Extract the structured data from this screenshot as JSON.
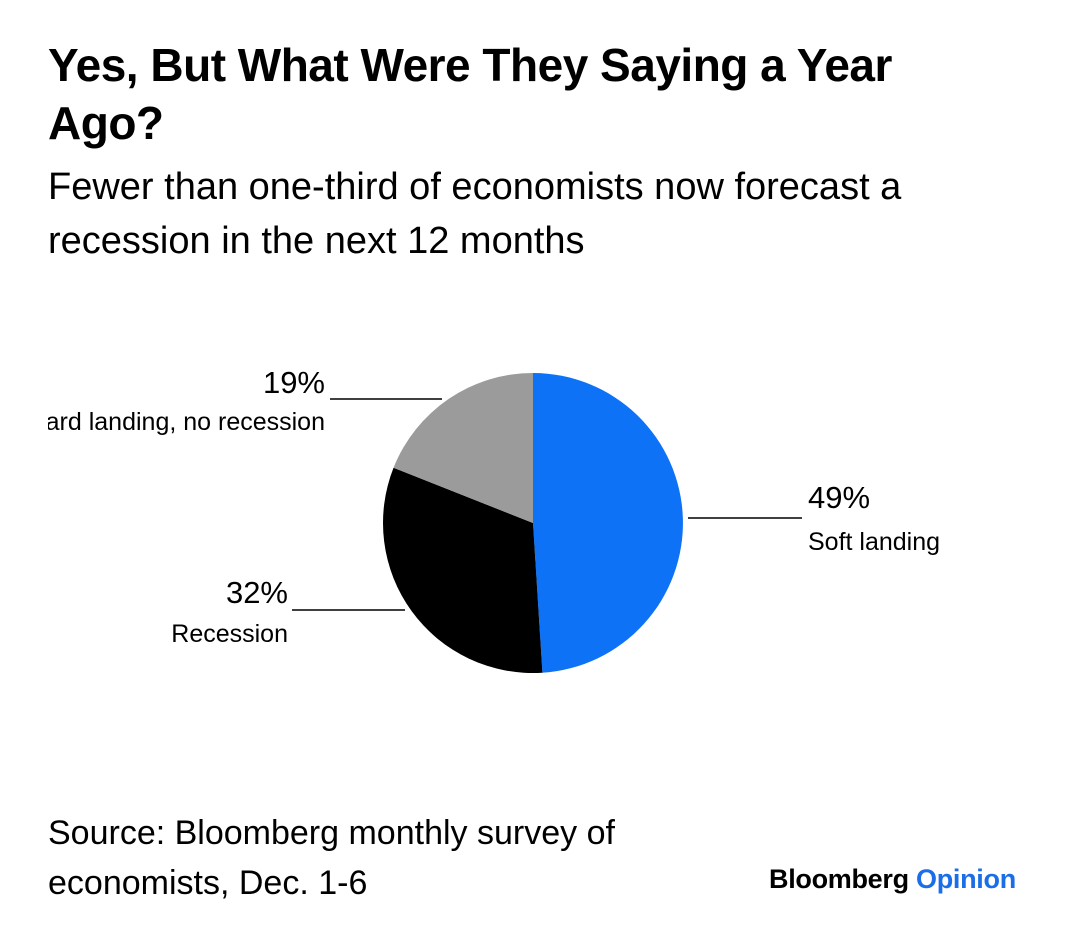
{
  "title": "Yes, But What Were They Saying a Year Ago?",
  "subtitle": "Fewer than one-third of economists now forecast a recession in the next 12 months",
  "chart_data": {
    "type": "pie",
    "title": "Yes, But What Were They Saying a Year Ago?",
    "subtitle": "Fewer than one-third of economists now forecast a recession in the next 12 months",
    "start": "12 o'clock, clockwise",
    "slices": [
      {
        "label": "Soft landing",
        "value": 49,
        "display": "49%",
        "color": "#0d72f5"
      },
      {
        "label": "Recession",
        "value": 32,
        "display": "32%",
        "color": "#000000"
      },
      {
        "label": "Hard landing, no recession",
        "value": 19,
        "display": "19%",
        "color": "#9b9b9b"
      }
    ]
  },
  "source": "Source: Bloomberg monthly survey of economists, Dec. 1-6",
  "logo": {
    "brand": "Bloomberg",
    "section": "Opinion"
  }
}
